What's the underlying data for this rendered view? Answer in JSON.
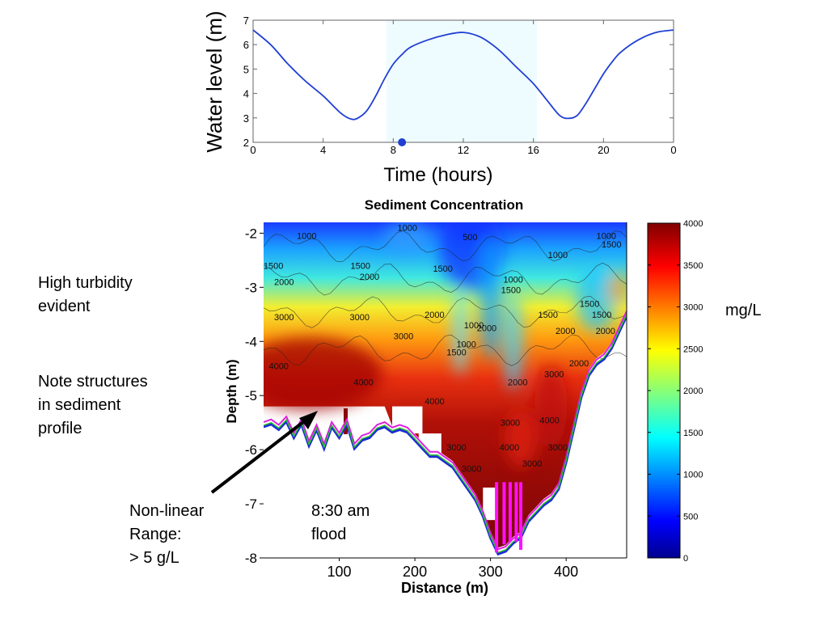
{
  "notes": {
    "turbidity": [
      "High turbidity",
      "evident"
    ],
    "structures": [
      "Note structures",
      "in sediment",
      "profile"
    ],
    "nonlinear": [
      "Non-linear",
      "Range:",
      "> 5 g/L"
    ],
    "time_note": [
      "8:30 am",
      "flood"
    ]
  },
  "chart_data": [
    {
      "type": "line",
      "title": "",
      "xlabel": "Time (hours)",
      "ylabel": "Water level (m)",
      "x_tick_labels": [
        "0",
        "4",
        "8",
        "12",
        "16",
        "20",
        "0"
      ],
      "y_ticks": [
        2,
        3,
        4,
        5,
        6,
        7
      ],
      "xlim": [
        0,
        24
      ],
      "ylim": [
        2,
        7
      ],
      "shaded_interval": [
        7.6,
        16.2
      ],
      "current_marker": {
        "x": 8.5,
        "y": 2.0
      },
      "series": [
        {
          "color": "#1f3fd4",
          "x": [
            0,
            1,
            2,
            3,
            4,
            5,
            5.6,
            6,
            6.5,
            7,
            7.5,
            8,
            8.5,
            9,
            10,
            11,
            12,
            13,
            14,
            15,
            16,
            16.8,
            17.5,
            18,
            18.5,
            19,
            19.5,
            20,
            20.5,
            21,
            22,
            23,
            24
          ],
          "y": [
            6.6,
            6.0,
            5.2,
            4.5,
            3.9,
            3.2,
            2.95,
            3.0,
            3.3,
            3.9,
            4.6,
            5.2,
            5.6,
            5.9,
            6.2,
            6.4,
            6.5,
            6.3,
            5.8,
            5.1,
            4.4,
            3.7,
            3.1,
            2.98,
            3.1,
            3.6,
            4.2,
            4.8,
            5.3,
            5.7,
            6.2,
            6.5,
            6.6
          ]
        }
      ]
    },
    {
      "type": "heatmap",
      "title": "Sediment Concentration",
      "xlabel": "Distance (m)",
      "ylabel": "Depth (m)",
      "x_ticks": [
        100,
        200,
        300,
        400
      ],
      "y_ticks": [
        -2,
        -3,
        -4,
        -5,
        -6,
        -7,
        -8
      ],
      "xlim": [
        0,
        480
      ],
      "ylim": [
        -8,
        -1.8
      ],
      "colorbar": {
        "label": "mg/L",
        "min": 0,
        "max": 4000,
        "ticks": [
          0,
          500,
          1000,
          1500,
          2000,
          2500,
          3000,
          3500,
          4000
        ]
      },
      "contour_labels": [
        {
          "text": "1000",
          "x": 57,
          "y": -2.05
        },
        {
          "text": "1000",
          "x": 190,
          "y": -1.9
        },
        {
          "text": "500",
          "x": 273,
          "y": -2.07
        },
        {
          "text": "1000",
          "x": 389,
          "y": -2.4
        },
        {
          "text": "1000",
          "x": 453,
          "y": -2.05
        },
        {
          "text": "1500",
          "x": 460,
          "y": -2.2
        },
        {
          "text": "1500",
          "x": 13,
          "y": -2.6
        },
        {
          "text": "1500",
          "x": 128,
          "y": -2.6
        },
        {
          "text": "2000",
          "x": 140,
          "y": -2.8
        },
        {
          "text": "1500",
          "x": 237,
          "y": -2.65
        },
        {
          "text": "2000",
          "x": 27,
          "y": -2.9
        },
        {
          "text": "1000",
          "x": 330,
          "y": -2.85
        },
        {
          "text": "1500",
          "x": 327,
          "y": -3.05
        },
        {
          "text": "1500",
          "x": 431,
          "y": -3.3
        },
        {
          "text": "3000",
          "x": 27,
          "y": -3.55
        },
        {
          "text": "3000",
          "x": 127,
          "y": -3.55
        },
        {
          "text": "2000",
          "x": 226,
          "y": -3.5
        },
        {
          "text": "1500",
          "x": 376,
          "y": -3.5
        },
        {
          "text": "1500",
          "x": 447,
          "y": -3.5
        },
        {
          "text": "3000",
          "x": 185,
          "y": -3.9
        },
        {
          "text": "1000",
          "x": 278,
          "y": -3.7
        },
        {
          "text": "2000",
          "x": 295,
          "y": -3.75
        },
        {
          "text": "2000",
          "x": 399,
          "y": -3.8
        },
        {
          "text": "2000",
          "x": 452,
          "y": -3.8
        },
        {
          "text": "1500",
          "x": 255,
          "y": -4.2
        },
        {
          "text": "1000",
          "x": 268,
          "y": -4.05
        },
        {
          "text": "4000",
          "x": 20,
          "y": -4.45
        },
        {
          "text": "2000",
          "x": 417,
          "y": -4.4
        },
        {
          "text": "4000",
          "x": 132,
          "y": -4.75
        },
        {
          "text": "3000",
          "x": 384,
          "y": -4.6
        },
        {
          "text": "2000",
          "x": 336,
          "y": -4.75
        },
        {
          "text": "4000",
          "x": 226,
          "y": -5.1
        },
        {
          "text": "3000",
          "x": 326,
          "y": -5.5
        },
        {
          "text": "4000",
          "x": 378,
          "y": -5.45
        },
        {
          "text": "3000",
          "x": 255,
          "y": -5.95
        },
        {
          "text": "4000",
          "x": 325,
          "y": -5.95
        },
        {
          "text": "3000",
          "x": 389,
          "y": -5.95
        },
        {
          "text": "3000",
          "x": 275,
          "y": -6.35
        },
        {
          "text": "3000",
          "x": 355,
          "y": -6.25
        }
      ],
      "bottom_profile": {
        "x": [
          0,
          10,
          20,
          30,
          40,
          50,
          60,
          70,
          80,
          90,
          100,
          110,
          120,
          130,
          140,
          150,
          160,
          170,
          180,
          190,
          200,
          210,
          220,
          230,
          240,
          250,
          260,
          270,
          280,
          290,
          300,
          310,
          320,
          330,
          340,
          350,
          360,
          370,
          380,
          390,
          400,
          410,
          420,
          430,
          440,
          450,
          460,
          470,
          480
        ],
        "y": [
          -5.55,
          -5.5,
          -5.6,
          -5.45,
          -5.75,
          -5.5,
          -5.9,
          -5.6,
          -5.95,
          -5.55,
          -5.75,
          -5.5,
          -5.95,
          -5.8,
          -5.75,
          -5.6,
          -5.55,
          -5.65,
          -5.6,
          -5.65,
          -5.8,
          -5.95,
          -6.1,
          -6.1,
          -6.2,
          -6.3,
          -6.5,
          -6.7,
          -6.9,
          -7.2,
          -7.6,
          -7.9,
          -7.85,
          -7.7,
          -7.6,
          -7.3,
          -7.15,
          -7.0,
          -6.9,
          -6.7,
          -6.2,
          -5.6,
          -5.0,
          -4.6,
          -4.4,
          -4.3,
          -4.1,
          -3.8,
          -3.5
        ]
      }
    }
  ]
}
